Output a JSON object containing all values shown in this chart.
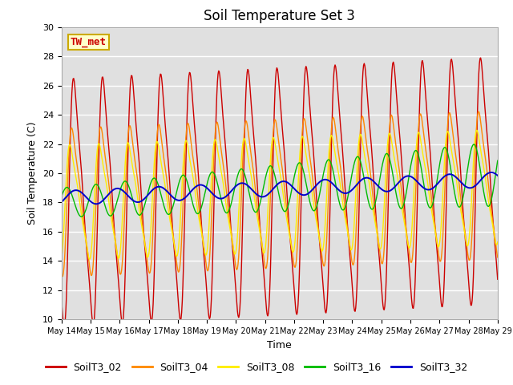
{
  "title": "Soil Temperature Set 3",
  "xlabel": "Time",
  "ylabel": "Soil Temperature (C)",
  "ylim": [
    10,
    30
  ],
  "x_tick_labels": [
    "May 14",
    "May 15",
    "May 16",
    "May 17",
    "May 18",
    "May 19",
    "May 20",
    "May 21",
    "May 22",
    "May 23",
    "May 24",
    "May 25",
    "May 26",
    "May 27",
    "May 28",
    "May 29"
  ],
  "colors": {
    "SoilT3_02": "#cc0000",
    "SoilT3_04": "#ff8800",
    "SoilT3_08": "#ffee00",
    "SoilT3_16": "#00bb00",
    "SoilT3_32": "#0000cc"
  },
  "background_color": "#e0e0e0",
  "figure_bg": "#ffffff",
  "annotation_text": "TW_met",
  "annotation_fg": "#cc0000",
  "annotation_bg": "#ffffcc",
  "annotation_border": "#ccaa00",
  "legend_labels": [
    "SoilT3_02",
    "SoilT3_04",
    "SoilT3_08",
    "SoilT3_16",
    "SoilT3_32"
  ]
}
